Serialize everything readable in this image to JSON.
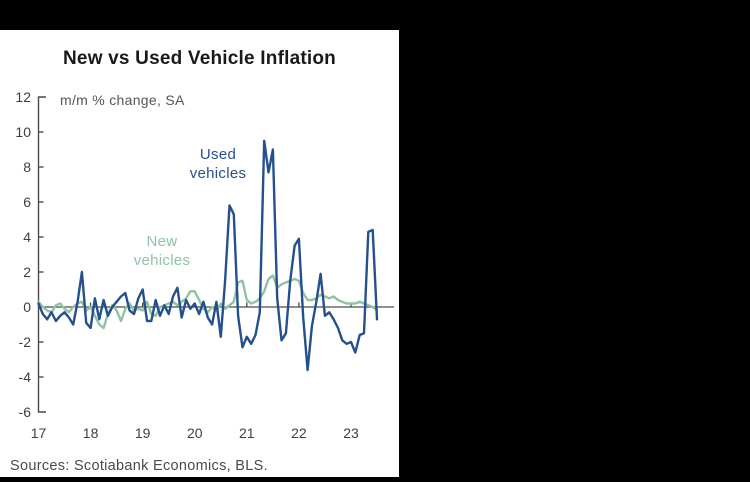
{
  "panel": {
    "title": "New vs Used Vehicle Inflation",
    "annotation": "m/m % change, SA",
    "sources": "Sources: Scotiabank Economics, BLS."
  },
  "colors": {
    "page_background": "#000000",
    "panel_background": "#ffffff",
    "axis": "#4a4a4a",
    "tick_text": "#3f3f3f",
    "title_text": "#1a1a1a",
    "annotation_text": "#555555",
    "sources_text": "#4a4a4a",
    "used_line": "#24508e",
    "new_line": "#8fc3a4"
  },
  "chart_data": {
    "type": "line",
    "title": "New vs Used Vehicle Inflation",
    "subtitle": "m/m % change, SA",
    "x_unit": "month",
    "x_start": "2017-01",
    "x_end": "2023-07",
    "x_tick_labels": [
      "17",
      "18",
      "19",
      "20",
      "21",
      "22",
      "23"
    ],
    "y_ticks": [
      12,
      10,
      8,
      6,
      4,
      2,
      0,
      -2,
      -4,
      -6
    ],
    "ylim": [
      -6,
      12
    ],
    "grid": false,
    "legend": "inline-text-labels",
    "series": [
      {
        "name": "New vehicles",
        "label_lines": [
          "New",
          "vehicles"
        ],
        "color": "#8fc3a4",
        "values": [
          0.3,
          0.0,
          -0.2,
          -0.3,
          0.1,
          0.2,
          -0.1,
          -0.3,
          0.0,
          0.2,
          0.3,
          -0.2,
          0.0,
          -0.5,
          -1.0,
          -1.2,
          -0.4,
          0.1,
          -0.2,
          -0.8,
          -0.1,
          0.2,
          -0.2,
          -0.1,
          -0.2,
          0.3,
          -0.4,
          -0.5,
          0.0,
          0.1,
          0.2,
          0.3,
          0.1,
          0.3,
          0.5,
          0.9,
          0.9,
          0.4,
          -0.1,
          -0.3,
          0.0,
          -0.2,
          0.2,
          -0.1,
          0.1,
          0.3,
          1.4,
          1.5,
          0.4,
          0.2,
          0.3,
          0.5,
          0.9,
          1.6,
          1.8,
          1.1,
          1.3,
          1.4,
          1.5,
          1.6,
          1.5,
          0.8,
          0.4,
          0.4,
          0.5,
          0.7,
          0.6,
          0.5,
          0.6,
          0.4,
          0.3,
          0.2,
          0.2,
          0.2,
          0.3,
          0.2,
          0.1,
          0.0,
          -0.2
        ]
      },
      {
        "name": "Used vehicles",
        "label_lines": [
          "Used",
          "vehicles"
        ],
        "color": "#24508e",
        "values": [
          0.2,
          -0.4,
          -0.7,
          -0.3,
          -0.8,
          -0.5,
          -0.3,
          -0.6,
          -1.0,
          0.3,
          2.0,
          -0.9,
          -1.2,
          0.5,
          -0.7,
          0.4,
          -0.5,
          0.0,
          0.3,
          0.6,
          0.8,
          -0.2,
          -0.4,
          0.5,
          1.0,
          -0.8,
          -0.8,
          0.4,
          -0.5,
          0.1,
          -0.4,
          0.6,
          1.1,
          -0.6,
          0.4,
          -0.1,
          0.2,
          -0.4,
          0.3,
          -0.6,
          -1.0,
          0.3,
          -1.7,
          1.5,
          5.8,
          5.3,
          -0.5,
          -2.3,
          -1.7,
          -2.1,
          -1.6,
          -0.3,
          9.5,
          7.7,
          9.0,
          0.5,
          -1.9,
          -1.5,
          1.5,
          3.5,
          3.9,
          -0.6,
          -3.6,
          -1.1,
          0.3,
          1.9,
          -0.5,
          -0.3,
          -0.7,
          -1.2,
          -1.9,
          -2.1,
          -2.0,
          -2.6,
          -1.6,
          -1.5,
          4.3,
          4.4,
          -0.7
        ]
      }
    ]
  }
}
